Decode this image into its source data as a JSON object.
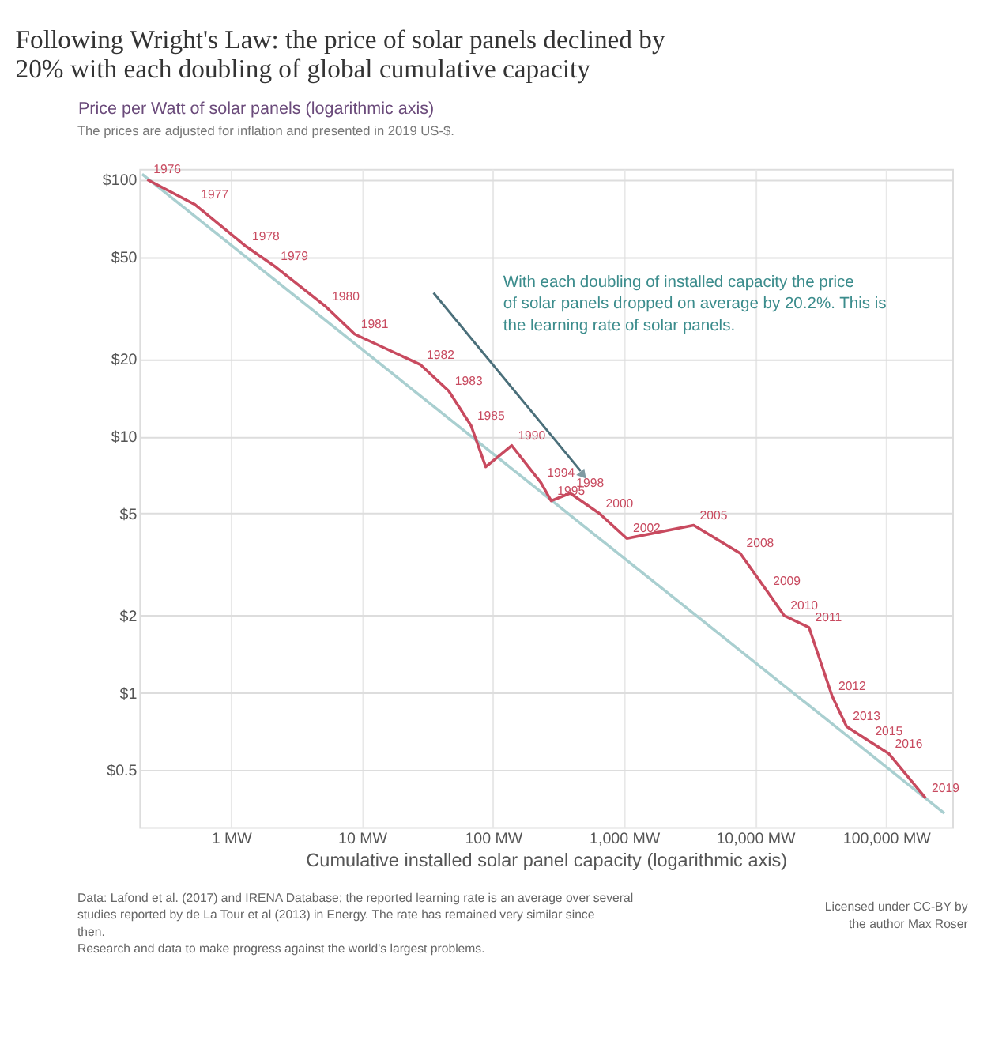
{
  "chart_data": {
    "type": "line",
    "title": "Following Wright's Law: the price of solar panels declined by 20% with each doubling of global cumulative capacity",
    "subtitle": "The prices are adjusted for inflation and presented in 2019 US-$.",
    "ylabel": "Price per Watt of solar panels (logarithmic axis)",
    "xlabel": "Cumulative installed solar panel capacity (logarithmic axis)",
    "log": "xy",
    "grid": true,
    "xlim": [
      0.2,
      320000
    ],
    "ylim": [
      0.3,
      110
    ],
    "xticks": [
      {
        "value": 1,
        "label": "1 MW"
      },
      {
        "value": 10,
        "label": "10 MW"
      },
      {
        "value": 100,
        "label": "100 MW"
      },
      {
        "value": 1000,
        "label": "1,000 MW"
      },
      {
        "value": 10000,
        "label": "10,000 MW"
      },
      {
        "value": 100000,
        "label": "100,000 MW"
      }
    ],
    "yticks": [
      {
        "value": 0.5,
        "label": "$0.5"
      },
      {
        "value": 1,
        "label": "$1"
      },
      {
        "value": 2,
        "label": "$2"
      },
      {
        "value": 5,
        "label": "$5"
      },
      {
        "value": 10,
        "label": "$10"
      },
      {
        "value": 20,
        "label": "$20"
      },
      {
        "value": 50,
        "label": "$50"
      },
      {
        "value": 100,
        "label": "$100"
      }
    ],
    "series": [
      {
        "color": "#a9cfd0",
        "x": [
          0.21,
          278000
        ],
        "values": [
          105,
          0.34
        ]
      },
      {
        "color": "#c84a5f",
        "x": [
          0.23,
          0.53,
          1.3,
          2.15,
          5.3,
          8.8,
          28,
          46,
          68,
          88,
          139,
          232,
          278,
          388,
          650,
          1050,
          3400,
          7700,
          12300,
          16700,
          25800,
          38800,
          50000,
          74000,
          105000,
          200000
        ],
        "values": [
          100,
          80,
          55,
          46,
          32,
          25,
          19,
          15,
          11,
          7.6,
          9.2,
          6.6,
          5.6,
          6.0,
          5.0,
          4.0,
          4.5,
          3.5,
          2.5,
          2.0,
          1.8,
          0.97,
          0.74,
          0.65,
          0.58,
          0.39
        ]
      }
    ],
    "annotations": [
      "With each doubling of installed capacity the price of solar panels dropped on average by 20.2%. This is the learning rate of solar panels.",
      "Data: Lafond et al. (2017) and IRENA Database; the reported learning rate is an average over several studies reported by de La Tour et al (2013) in Energy. The rate has remained very similar since then.",
      "Research and data to make progress against the world's largest problems.",
      "Licensed under CC-BY by the author Max Roser",
      {
        "text": "1976",
        "x": 0.23,
        "y": 100
      },
      {
        "text": "1977",
        "x": 0.53,
        "y": 80
      },
      {
        "text": "1978",
        "x": 1.3,
        "y": 55
      },
      {
        "text": "1979",
        "x": 2.15,
        "y": 46
      },
      {
        "text": "1980",
        "x": 5.3,
        "y": 32
      },
      {
        "text": "1981",
        "x": 8.8,
        "y": 25
      },
      {
        "text": "1982",
        "x": 28,
        "y": 19
      },
      {
        "text": "1983",
        "x": 46,
        "y": 15
      },
      {
        "text": "1985",
        "x": 68,
        "y": 11
      },
      {
        "text": "1990",
        "x": 139,
        "y": 9.2
      },
      {
        "text": "1994",
        "x": 232,
        "y": 6.6
      },
      {
        "text": "1995",
        "x": 278,
        "y": 5.6
      },
      {
        "text": "1998",
        "x": 388,
        "y": 6.0
      },
      {
        "text": "2000",
        "x": 650,
        "y": 5.0
      },
      {
        "text": "2002",
        "x": 1050,
        "y": 4.0
      },
      {
        "text": "2005",
        "x": 3400,
        "y": 4.5
      },
      {
        "text": "2008",
        "x": 7700,
        "y": 3.5
      },
      {
        "text": "2009",
        "x": 12300,
        "y": 2.5
      },
      {
        "text": "2010",
        "x": 16700,
        "y": 2.0
      },
      {
        "text": "2011",
        "x": 25800,
        "y": 1.8
      },
      {
        "text": "2012",
        "x": 38800,
        "y": 0.97
      },
      {
        "text": "2013",
        "x": 50000,
        "y": 0.74
      },
      {
        "text": "2015",
        "x": 74000,
        "y": 0.65
      },
      {
        "text": "2016",
        "x": 105000,
        "y": 0.58
      },
      {
        "text": "2019",
        "x": 200000,
        "y": 0.39
      }
    ]
  }
}
